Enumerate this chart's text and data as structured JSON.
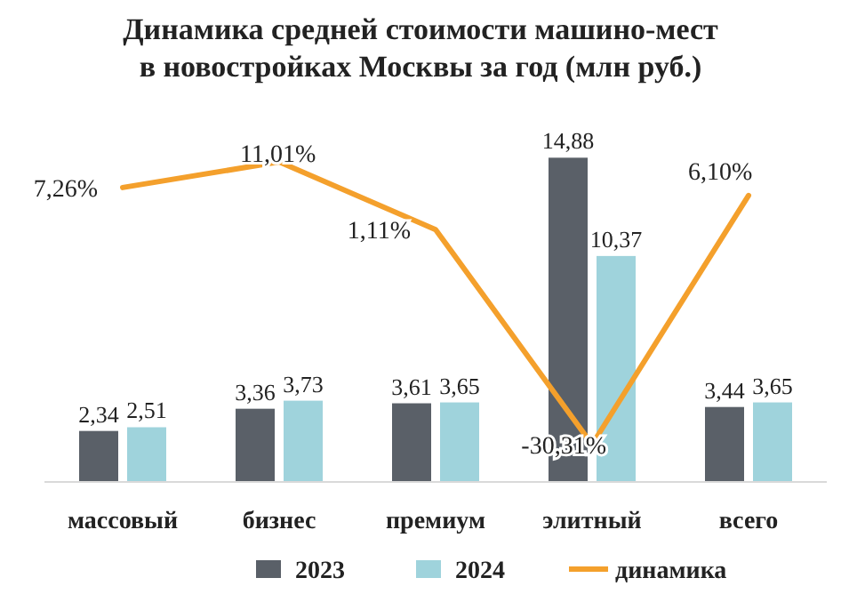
{
  "chart_data": {
    "type": "bar",
    "title": "Динамика средней стоимости машино-мест\nв новостройках Москвы за год (млн руб.)",
    "categories": [
      "массовый",
      "бизнес",
      "премиум",
      "элитный",
      "всего"
    ],
    "legend": "bottom",
    "tick_labels": "x",
    "series": [
      {
        "name": "2023",
        "color": "#5a6068",
        "values": [
          2.34,
          3.36,
          3.61,
          14.88,
          3.44
        ],
        "value_labels": [
          "2,34",
          "3,36",
          "3,61",
          "14,88",
          "3,44"
        ]
      },
      {
        "name": "2024",
        "color": "#9fd3dc",
        "values": [
          2.51,
          3.73,
          3.65,
          10.37,
          3.65
        ],
        "value_labels": [
          "2,51",
          "3,73",
          "3,65",
          "10,37",
          "3,65"
        ]
      },
      {
        "name": "динамика",
        "type": "line",
        "axis": "y2",
        "color": "#f4a02c",
        "values": [
          7.26,
          11.01,
          1.11,
          -30.31,
          6.1
        ],
        "value_labels": [
          "7,26%",
          "11,01%",
          "1,11%",
          "-30,31%",
          "6,10%"
        ]
      }
    ]
  }
}
